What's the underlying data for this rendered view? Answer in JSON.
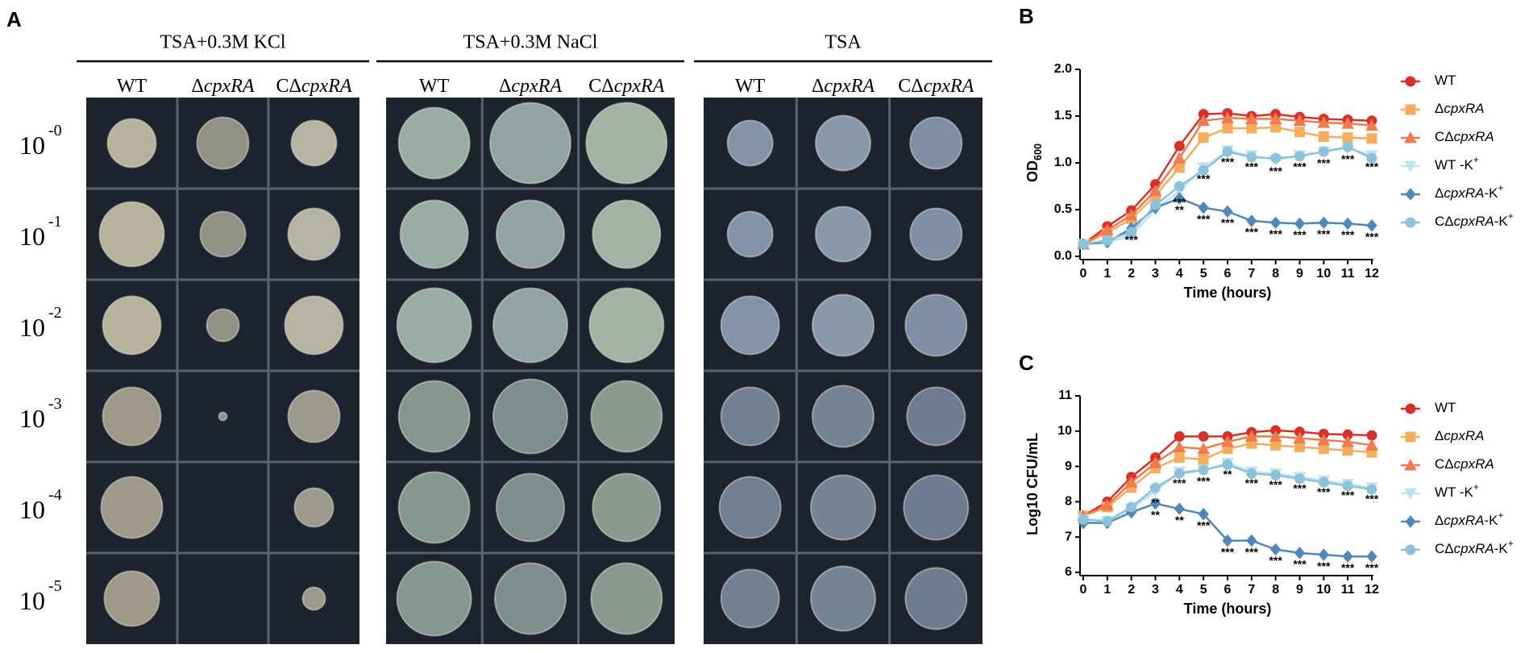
{
  "panel_a": {
    "label": "A",
    "dilutions": [
      {
        "base": "10",
        "exponent": "-0"
      },
      {
        "base": "10",
        "exponent": "-1"
      },
      {
        "base": "10",
        "exponent": "-2"
      },
      {
        "base": "10",
        "exponent": "-3"
      },
      {
        "base": "10",
        "exponent": "-4"
      },
      {
        "base": "10",
        "exponent": "-5"
      }
    ],
    "groups": [
      {
        "title": "TSA+0.3M KCl",
        "columns": [
          "WT",
          "ΔcpxRA",
          "CΔcpxRA"
        ]
      },
      {
        "title": "TSA+0.3M NaCl",
        "columns": [
          "WT",
          "ΔcpxRA",
          "CΔcpxRA"
        ]
      },
      {
        "title": "TSA",
        "columns": [
          "WT",
          "ΔcpxRA",
          "CΔcpxRA"
        ]
      }
    ]
  },
  "chart_data": [
    {
      "type": "line",
      "panel_label": "B",
      "ylabel": "OD600",
      "xlabel": "Time (hours)",
      "x": [
        0,
        1,
        2,
        3,
        4,
        5,
        6,
        7,
        8,
        9,
        10,
        11,
        12
      ],
      "xlim": [
        0,
        12
      ],
      "xticks": [
        0,
        1,
        2,
        3,
        4,
        5,
        6,
        7,
        8,
        9,
        10,
        11,
        12
      ],
      "ylim": [
        0,
        2
      ],
      "yticks": [
        {
          "value": 0,
          "label": "0.0"
        },
        0.5,
        {
          "value": 1,
          "label": "1.0"
        },
        1.5,
        {
          "value": 2,
          "label": "2.0"
        }
      ],
      "series": [
        {
          "name": "WT",
          "color": "#d7312a",
          "marker": "circle",
          "values": [
            0.13,
            0.32,
            0.49,
            0.77,
            1.18,
            1.52,
            1.53,
            1.5,
            1.52,
            1.49,
            1.47,
            1.46,
            1.45
          ]
        },
        {
          "name": "ΔcpxRA",
          "color": "#f5ac5c",
          "marker": "square",
          "values": [
            0.13,
            0.25,
            0.4,
            0.65,
            0.95,
            1.27,
            1.37,
            1.37,
            1.38,
            1.33,
            1.28,
            1.27,
            1.26
          ]
        },
        {
          "name": "CΔcpxRA",
          "color": "#f07b4f",
          "marker": "triangle",
          "values": [
            0.13,
            0.28,
            0.44,
            0.7,
            1.05,
            1.45,
            1.48,
            1.47,
            1.47,
            1.45,
            1.43,
            1.42,
            1.4
          ]
        },
        {
          "name": "WT -K+",
          "color": "#bfe4ef",
          "marker": "triangle-down",
          "values": [
            0.13,
            0.15,
            0.22,
            0.5,
            0.7,
            0.95,
            1.13,
            1.08,
            1.03,
            1.08,
            1.12,
            1.16,
            1.08
          ]
        },
        {
          "name": "ΔcpxRA-K+",
          "color": "#4f87bd",
          "marker": "diamond",
          "values": [
            0.13,
            0.15,
            0.3,
            0.52,
            0.62,
            0.52,
            0.48,
            0.38,
            0.36,
            0.35,
            0.36,
            0.35,
            0.33
          ]
        },
        {
          "name": "CΔcpxRA-K+",
          "color": "#8cc2dc",
          "marker": "circle",
          "values": [
            0.13,
            0.17,
            0.26,
            0.55,
            0.75,
            0.92,
            1.12,
            1.06,
            1.05,
            1.07,
            1.12,
            1.17,
            1.05
          ]
        }
      ],
      "annotations": [
        {
          "series": 3,
          "x": 4,
          "text": "***"
        },
        {
          "series": 3,
          "x": 5,
          "text": "***"
        },
        {
          "series": 3,
          "x": 6,
          "text": "***"
        },
        {
          "series": 3,
          "x": 7,
          "text": "***"
        },
        {
          "series": 3,
          "x": 8,
          "text": "***"
        },
        {
          "series": 3,
          "x": 9,
          "text": "***"
        },
        {
          "series": 3,
          "x": 10,
          "text": "***"
        },
        {
          "series": 3,
          "x": 11,
          "text": "***"
        },
        {
          "series": 3,
          "x": 12,
          "text": "***"
        },
        {
          "series": 4,
          "x": 2,
          "text": "***"
        },
        {
          "series": 4,
          "x": 4,
          "text": "**"
        },
        {
          "series": 4,
          "x": 5,
          "text": "***"
        },
        {
          "series": 4,
          "x": 6,
          "text": "***"
        },
        {
          "series": 4,
          "x": 7,
          "text": "***"
        },
        {
          "series": 4,
          "x": 8,
          "text": "***"
        },
        {
          "series": 4,
          "x": 9,
          "text": "***"
        },
        {
          "series": 4,
          "x": 10,
          "text": "***"
        },
        {
          "series": 4,
          "x": 11,
          "text": "***"
        },
        {
          "series": 4,
          "x": 12,
          "text": "***"
        }
      ]
    },
    {
      "type": "line",
      "panel_label": "C",
      "ylabel": "Log10 CFU/mL",
      "xlabel": "Time (hours)",
      "x": [
        0,
        1,
        2,
        3,
        4,
        5,
        6,
        7,
        8,
        9,
        10,
        11,
        12
      ],
      "xlim": [
        0,
        12
      ],
      "xticks": [
        0,
        1,
        2,
        3,
        4,
        5,
        6,
        7,
        8,
        9,
        10,
        11,
        12
      ],
      "ylim": [
        6,
        11
      ],
      "yticks": [
        6,
        7,
        8,
        9,
        10,
        11
      ],
      "series": [
        {
          "name": "WT",
          "color": "#d7312a",
          "marker": "circle",
          "values": [
            7.6,
            8.0,
            8.7,
            9.25,
            9.85,
            9.85,
            9.85,
            9.97,
            10.02,
            9.98,
            9.92,
            9.9,
            9.88
          ]
        },
        {
          "name": "ΔcpxRA",
          "color": "#f5ac5c",
          "marker": "square",
          "values": [
            7.6,
            7.85,
            8.4,
            8.95,
            9.25,
            9.2,
            9.5,
            9.65,
            9.6,
            9.55,
            9.5,
            9.45,
            9.4
          ]
        },
        {
          "name": "CΔcpxRA",
          "color": "#f07b4f",
          "marker": "triangle",
          "values": [
            7.6,
            7.9,
            8.55,
            9.1,
            9.55,
            9.5,
            9.7,
            9.85,
            9.85,
            9.8,
            9.75,
            9.7,
            9.6
          ]
        },
        {
          "name": "WT -K+",
          "color": "#bfe4ef",
          "marker": "triangle-down",
          "values": [
            7.5,
            7.45,
            7.8,
            8.3,
            8.85,
            8.9,
            9.1,
            8.85,
            8.8,
            8.7,
            8.6,
            8.5,
            8.4
          ]
        },
        {
          "name": "ΔcpxRA-K+",
          "color": "#4f87bd",
          "marker": "diamond",
          "values": [
            7.4,
            7.4,
            7.7,
            7.95,
            7.8,
            7.65,
            6.9,
            6.9,
            6.65,
            6.55,
            6.5,
            6.45,
            6.45
          ]
        },
        {
          "name": "CΔcpxRA-K+",
          "color": "#8cc2dc",
          "marker": "circle",
          "values": [
            7.5,
            7.45,
            7.85,
            8.4,
            8.8,
            8.9,
            9.05,
            8.8,
            8.75,
            8.65,
            8.55,
            8.45,
            8.35
          ]
        }
      ],
      "annotations": [
        {
          "series": 3,
          "x": 3,
          "text": "**"
        },
        {
          "series": 3,
          "x": 4,
          "text": "***"
        },
        {
          "series": 3,
          "x": 5,
          "text": "***"
        },
        {
          "series": 3,
          "x": 6,
          "text": "**"
        },
        {
          "series": 3,
          "x": 7,
          "text": "***"
        },
        {
          "series": 3,
          "x": 8,
          "text": "***"
        },
        {
          "series": 3,
          "x": 9,
          "text": "***"
        },
        {
          "series": 3,
          "x": 10,
          "text": "***"
        },
        {
          "series": 3,
          "x": 11,
          "text": "***"
        },
        {
          "series": 3,
          "x": 12,
          "text": "***"
        },
        {
          "series": 4,
          "x": 3,
          "text": "**"
        },
        {
          "series": 4,
          "x": 4,
          "text": "**"
        },
        {
          "series": 4,
          "x": 5,
          "text": "***"
        },
        {
          "series": 4,
          "x": 6,
          "text": "***"
        },
        {
          "series": 4,
          "x": 7,
          "text": "***"
        },
        {
          "series": 4,
          "x": 8,
          "text": "***"
        },
        {
          "series": 4,
          "x": 9,
          "text": "***"
        },
        {
          "series": 4,
          "x": 10,
          "text": "***"
        },
        {
          "series": 4,
          "x": 11,
          "text": "***"
        },
        {
          "series": 4,
          "x": 12,
          "text": "***"
        }
      ]
    }
  ]
}
